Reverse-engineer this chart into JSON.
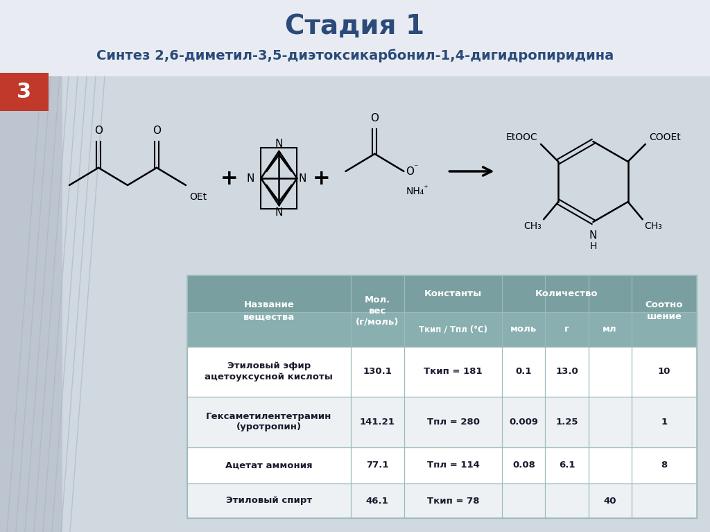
{
  "title": "Стадия 1",
  "subtitle": "Синтез 2,6-диметил-3,5-диэтоксикарбонил-1,4-дигидропиридина",
  "bg_color": "#CDD3DB",
  "left_panel_color": "#BEC6D0",
  "title_area_color": "#E8ECF2",
  "badge_color": "#C0392B",
  "badge_number": "3",
  "title_font_color": "#2B4A7A",
  "subtitle_font_color": "#2B4A7A",
  "table_header_bg": "#7A9FA0",
  "table_subheader_bg": "#8AAFB0",
  "table_row0": "#FFFFFF",
  "table_row1": "#EDF1F3",
  "table_text": "#1A1A2E",
  "table_header_text": "#FFFFFF",
  "rows": [
    [
      "Этиловый эфир\nацетоуксусной кислоты",
      "130.1",
      "Ткип = 181",
      "0.1",
      "13.0",
      "",
      "10"
    ],
    [
      "Гексаметилентетрамин\n(уротропин)",
      "141.21",
      "Тпл = 280",
      "0.009",
      "1.25",
      "",
      "1"
    ],
    [
      "Ацетат аммония",
      "77.1",
      "Тпл = 114",
      "0.08",
      "6.1",
      "",
      "8"
    ],
    [
      "Этиловый спирт",
      "46.1",
      "Ткип = 78",
      "",
      "",
      "40",
      ""
    ]
  ]
}
